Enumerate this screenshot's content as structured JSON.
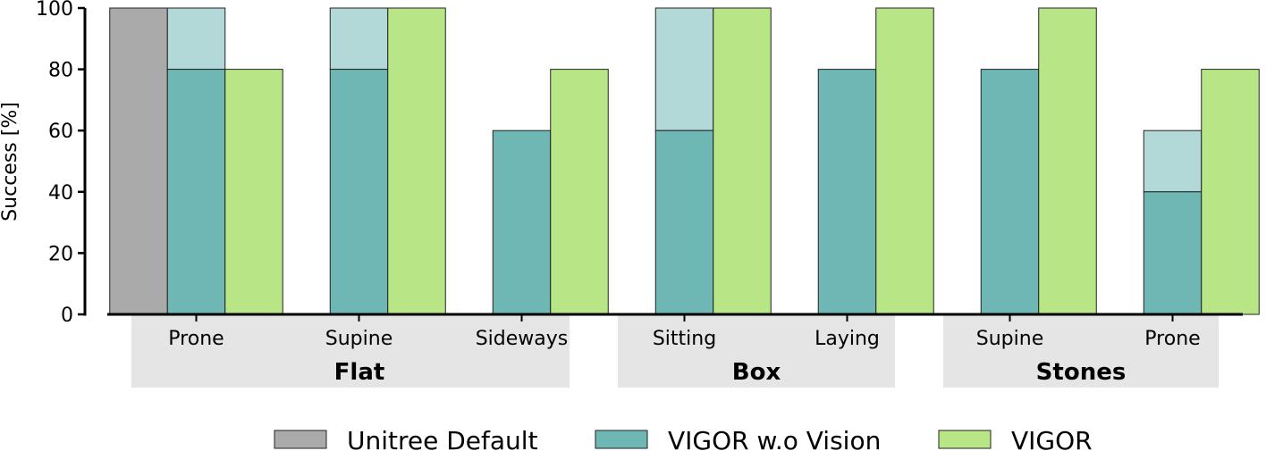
{
  "chart_data": {
    "type": "bar",
    "ylabel": "Success [%]",
    "ylim": [
      0,
      100
    ],
    "yticks": [
      0,
      20,
      40,
      60,
      80,
      100
    ],
    "grid": false,
    "legend_position": "bottom",
    "groups": [
      {
        "name": "Flat",
        "categories": [
          "Prone",
          "Supine",
          "Sideways"
        ]
      },
      {
        "name": "Box",
        "categories": [
          "Sitting",
          "Laying"
        ]
      },
      {
        "name": "Stones",
        "categories": [
          "Supine",
          "Prone"
        ]
      }
    ],
    "series": [
      {
        "name": "Unitree Default",
        "color": "#aaaaaa",
        "values": [
          100,
          null,
          null,
          null,
          null,
          null,
          null
        ]
      },
      {
        "name": "VIGOR w.o Vision",
        "color": "#6fb7b4",
        "values": [
          80,
          80,
          60,
          60,
          80,
          80,
          40
        ],
        "upper_values": [
          100,
          100,
          60,
          100,
          80,
          80,
          60
        ],
        "upper_color": "#b2d9d7"
      },
      {
        "name": "VIGOR",
        "color": "#b8e686",
        "values": [
          80,
          100,
          80,
          100,
          100,
          100,
          80
        ]
      }
    ]
  }
}
